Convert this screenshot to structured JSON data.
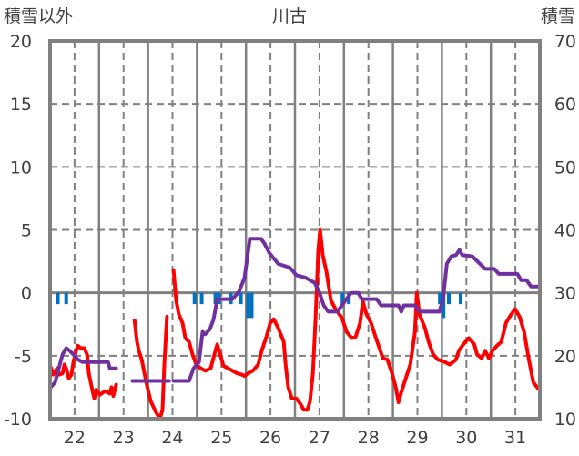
{
  "chart_data": {
    "type": "line",
    "title": "川古",
    "left_axis_label": "積雪以外",
    "right_axis_label": "積雪",
    "ylim_left": [
      -10,
      20
    ],
    "ylim_right": [
      10,
      70
    ],
    "yticks_left": [
      "20",
      "15",
      "10",
      "5",
      "0",
      "-5",
      "-10"
    ],
    "yticks_right": [
      "70",
      "60",
      "50",
      "40",
      "30",
      "20",
      "10"
    ],
    "x_unit": "hours from day 22 00:00",
    "xlim": [
      0,
      240
    ],
    "xticks": [
      "22",
      "23",
      "24",
      "25",
      "26",
      "27",
      "28",
      "29",
      "30",
      "31"
    ],
    "grid": true,
    "colors": {
      "temperature": "#ff0000",
      "snow_depth": "#7030a0",
      "precipitation": "#0070c0",
      "frame": "#808080"
    },
    "series": [
      {
        "name": "temperature",
        "axis": "left",
        "segments": [
          [
            [
              0.3,
              -5.9
            ],
            [
              1.6,
              -6.5
            ],
            [
              3.4,
              -6.0
            ],
            [
              4.7,
              -6.5
            ],
            [
              6.1,
              -6.4
            ],
            [
              7,
              -5.7
            ],
            [
              7.9,
              -6.0
            ],
            [
              9.2,
              -6.8
            ],
            [
              10.5,
              -6.5
            ],
            [
              11.4,
              -5.5
            ],
            [
              12.8,
              -4.6
            ],
            [
              13.6,
              -4.2
            ],
            [
              15,
              -4.4
            ],
            [
              16.8,
              -4.4
            ],
            [
              18.1,
              -4.9
            ],
            [
              19,
              -6.4
            ],
            [
              19.9,
              -7.1
            ],
            [
              20.8,
              -7.8
            ],
            [
              21.7,
              -8.4
            ],
            [
              22.6,
              -7.7
            ],
            [
              24.4,
              -8.1
            ],
            [
              27,
              -7.8
            ],
            [
              29.3,
              -8.0
            ],
            [
              30.1,
              -7.5
            ],
            [
              31,
              -8.2
            ],
            [
              32.4,
              -7.3
            ]
          ],
          [
            [
              41.4,
              -2.2
            ],
            [
              42.6,
              -3.9
            ],
            [
              43.5,
              -4.6
            ],
            [
              44.9,
              -5.3
            ],
            [
              47.1,
              -7.1
            ],
            [
              49.3,
              -8.6
            ],
            [
              51.6,
              -9.4
            ],
            [
              53.8,
              -10
            ],
            [
              55.1,
              -9.3
            ],
            [
              56,
              -5.7
            ],
            [
              57.3,
              -1.9
            ]
          ],
          [
            [
              60.5,
              1.8
            ],
            [
              61.8,
              -0.6
            ],
            [
              63.1,
              -1.7
            ],
            [
              64.9,
              -2.4
            ],
            [
              66.3,
              -3.6
            ],
            [
              68.1,
              -3.9
            ],
            [
              69.8,
              -4.9
            ],
            [
              71.6,
              -5.7
            ],
            [
              73.8,
              -6.0
            ],
            [
              76.1,
              -6.2
            ],
            [
              78.7,
              -6.0
            ],
            [
              80.5,
              -4.9
            ],
            [
              81.9,
              -4.1
            ],
            [
              83.2,
              -4.8
            ],
            [
              85,
              -5.8
            ],
            [
              87.2,
              -6.0
            ],
            [
              89.4,
              -6.2
            ],
            [
              91.7,
              -6.4
            ],
            [
              93.9,
              -6.5
            ],
            [
              95.3,
              -6.6
            ],
            [
              97,
              -6.4
            ],
            [
              99.3,
              -6.2
            ],
            [
              102,
              -5.7
            ],
            [
              103.7,
              -4.6
            ],
            [
              106,
              -3.5
            ],
            [
              107.8,
              -2.4
            ],
            [
              109.6,
              -2.1
            ],
            [
              111.8,
              -2.8
            ],
            [
              114.5,
              -3.9
            ],
            [
              115.4,
              -5.7
            ],
            [
              116.7,
              -7.5
            ],
            [
              118.5,
              -8.4
            ],
            [
              120.7,
              -8.4
            ],
            [
              123,
              -8.9
            ],
            [
              124.3,
              -9.3
            ],
            [
              126.1,
              -9.3
            ],
            [
              127.4,
              -8.6
            ],
            [
              128.8,
              -6.4
            ],
            [
              130.1,
              -2.1
            ],
            [
              131.4,
              3.4
            ],
            [
              132.3,
              5.0
            ],
            [
              133.6,
              3.0
            ],
            [
              135.4,
              1.7
            ],
            [
              137.6,
              -0.6
            ],
            [
              139.9,
              -1.3
            ],
            [
              143,
              -2.0
            ],
            [
              145.3,
              -3.1
            ],
            [
              147.9,
              -3.6
            ],
            [
              149.7,
              -3.5
            ],
            [
              151.9,
              -2.4
            ],
            [
              153.3,
              -0.7
            ],
            [
              155,
              -1.7
            ],
            [
              157.3,
              -2.4
            ],
            [
              159.5,
              -3.5
            ],
            [
              163.1,
              -5.2
            ],
            [
              165.3,
              -5.3
            ],
            [
              167.6,
              -6.4
            ],
            [
              169.4,
              -7.5
            ],
            [
              170.7,
              -8.7
            ],
            [
              172.1,
              -7.9
            ],
            [
              174.3,
              -6.8
            ],
            [
              176.5,
              -5.7
            ],
            [
              178.8,
              -3.1
            ],
            [
              179.7,
              0.0
            ],
            [
              181,
              -1.7
            ],
            [
              183.7,
              -2.8
            ],
            [
              185.5,
              -3.9
            ],
            [
              187.7,
              -4.9
            ],
            [
              190,
              -5.3
            ],
            [
              193.5,
              -5.5
            ],
            [
              195.8,
              -5.7
            ],
            [
              197.5,
              -5.5
            ],
            [
              198.9,
              -5.3
            ],
            [
              200.3,
              -4.6
            ],
            [
              202.5,
              -4.1
            ],
            [
              205.2,
              -3.6
            ],
            [
              207.9,
              -4.1
            ],
            [
              209.2,
              -4.9
            ],
            [
              211.5,
              -5.2
            ],
            [
              213.2,
              -4.6
            ],
            [
              215,
              -5.2
            ],
            [
              216.8,
              -4.6
            ],
            [
              219,
              -4.2
            ],
            [
              221.1,
              -3.9
            ],
            [
              223.4,
              -2.4
            ],
            [
              225.6,
              -1.8
            ],
            [
              227.8,
              -1.3
            ],
            [
              230.1,
              -1.9
            ],
            [
              232.3,
              -3.1
            ],
            [
              234.6,
              -5.3
            ],
            [
              236.8,
              -7.1
            ],
            [
              239.1,
              -7.6
            ]
          ]
        ]
      },
      {
        "name": "snow_depth",
        "axis": "left_scaled",
        "segments": [
          [
            [
              0.3,
              -7.5
            ],
            [
              2.5,
              -7.1
            ],
            [
              4.3,
              -6.0
            ],
            [
              6.1,
              -4.9
            ],
            [
              7.9,
              -4.4
            ],
            [
              9.6,
              -4.6
            ],
            [
              11.4,
              -4.9
            ],
            [
              13.6,
              -5.3
            ],
            [
              15.9,
              -5.5
            ],
            [
              28.4,
              -5.5
            ],
            [
              29.3,
              -6.0
            ],
            [
              32.4,
              -6.0
            ]
          ],
          [
            [
              40.4,
              -7.0
            ],
            [
              58.3,
              -7.0
            ]
          ],
          [
            [
              60.5,
              -7.0
            ],
            [
              68.1,
              -7.0
            ],
            [
              70.3,
              -6.0
            ],
            [
              73,
              -5.5
            ],
            [
              74.7,
              -3.1
            ],
            [
              76,
              -3.3
            ],
            [
              78.3,
              -2.9
            ],
            [
              80.1,
              -2.1
            ],
            [
              81.9,
              -0.5
            ],
            [
              89.4,
              -0.5
            ],
            [
              92.6,
              0.1
            ],
            [
              95.3,
              1.2
            ],
            [
              97.9,
              4.3
            ],
            [
              103.3,
              4.3
            ],
            [
              105.1,
              3.9
            ],
            [
              107.3,
              3.2
            ],
            [
              111.8,
              2.3
            ],
            [
              117.5,
              2.0
            ],
            [
              120.7,
              1.4
            ],
            [
              125.2,
              1.2
            ],
            [
              129.6,
              0.8
            ],
            [
              131.8,
              0.1
            ],
            [
              134.1,
              -1.0
            ],
            [
              136.3,
              -1.5
            ],
            [
              140.8,
              -1.5
            ],
            [
              143,
              -1.0
            ],
            [
              147.5,
              0.0
            ],
            [
              151,
              0.0
            ],
            [
              152.8,
              -0.5
            ],
            [
              160,
              -0.5
            ],
            [
              162.2,
              -1.0
            ],
            [
              170.7,
              -1.0
            ],
            [
              172.1,
              -1.5
            ],
            [
              173.4,
              -1.0
            ],
            [
              178.8,
              -1.0
            ],
            [
              181,
              -1.5
            ],
            [
              190.8,
              -1.5
            ],
            [
              192.6,
              -0.5
            ],
            [
              194.4,
              2.3
            ],
            [
              196.6,
              2.9
            ],
            [
              198.9,
              3.0
            ],
            [
              200.6,
              3.4
            ],
            [
              202,
              3.0
            ],
            [
              206.9,
              2.9
            ],
            [
              210,
              2.4
            ],
            [
              213.2,
              1.9
            ],
            [
              217.7,
              1.9
            ],
            [
              219.9,
              1.5
            ],
            [
              229,
              1.5
            ],
            [
              230.8,
              1.0
            ],
            [
              233.5,
              1.0
            ],
            [
              235.7,
              0.5
            ],
            [
              239.7,
              0.5
            ]
          ]
        ]
      },
      {
        "name": "precipitation",
        "axis": "left_down_from_zero",
        "bars": [
          [
            3.8,
            0.9
          ],
          [
            7.9,
            0.9
          ],
          [
            70.8,
            0.9
          ],
          [
            74.3,
            0.9
          ],
          [
            81,
            0.9
          ],
          [
            82.8,
            0.9
          ],
          [
            88.6,
            0.9
          ],
          [
            93.5,
            0.9
          ],
          [
            97,
            2.0
          ],
          [
            98.8,
            2.0
          ],
          [
            143.3,
            0.9
          ],
          [
            146.4,
            0.9
          ],
          [
            191,
            0.9
          ],
          [
            192.8,
            2.0
          ],
          [
            195.4,
            0.9
          ],
          [
            201.2,
            0.9
          ]
        ]
      }
    ]
  }
}
